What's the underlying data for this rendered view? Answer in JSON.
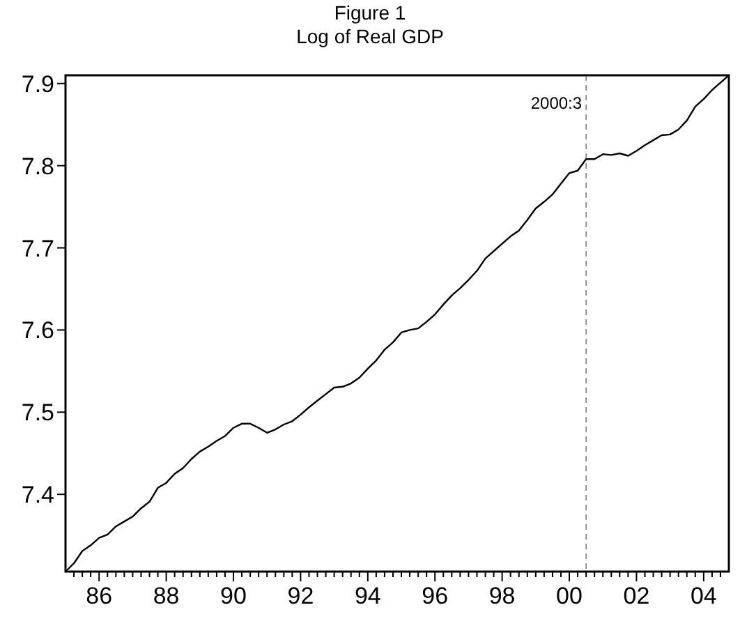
{
  "chart_data": {
    "type": "line",
    "title": "Figure 1",
    "subtitle": "Log of Real GDP",
    "x": [
      1985,
      1985.25,
      1985.5,
      1985.75,
      1986,
      1986.25,
      1986.5,
      1986.75,
      1987,
      1987.25,
      1987.5,
      1987.75,
      1988,
      1988.25,
      1988.5,
      1988.75,
      1989,
      1989.25,
      1989.5,
      1989.75,
      1990,
      1990.25,
      1990.5,
      1990.75,
      1991,
      1991.25,
      1991.5,
      1991.75,
      1992,
      1992.25,
      1992.5,
      1992.75,
      1993,
      1993.25,
      1993.5,
      1993.75,
      1994,
      1994.25,
      1994.5,
      1994.75,
      1995,
      1995.25,
      1995.5,
      1995.75,
      1996,
      1996.25,
      1996.5,
      1996.75,
      1997,
      1997.25,
      1997.5,
      1997.75,
      1998,
      1998.25,
      1998.5,
      1998.75,
      1999,
      1999.25,
      1999.5,
      1999.75,
      2000,
      2000.25,
      2000.5,
      2000.75,
      2001,
      2001.25,
      2001.5,
      2001.75,
      2002,
      2002.25,
      2002.5,
      2002.75,
      2003,
      2003.25,
      2003.5,
      2003.75,
      2004,
      2004.25,
      2004.5,
      2004.75
    ],
    "series": [
      {
        "color": "#000000",
        "values": [
          7.306,
          7.316,
          7.331,
          7.338,
          7.347,
          7.351,
          7.361,
          7.367,
          7.373,
          7.383,
          7.391,
          7.408,
          7.414,
          7.425,
          7.432,
          7.443,
          7.452,
          7.458,
          7.465,
          7.471,
          7.481,
          7.486,
          7.486,
          7.481,
          7.475,
          7.479,
          7.485,
          7.489,
          7.497,
          7.506,
          7.514,
          7.522,
          7.53,
          7.531,
          7.535,
          7.542,
          7.553,
          7.563,
          7.576,
          7.585,
          7.597,
          7.6,
          7.602,
          7.61,
          7.619,
          7.631,
          7.642,
          7.651,
          7.661,
          7.672,
          7.687,
          7.696,
          7.705,
          7.714,
          7.721,
          7.734,
          7.748,
          7.756,
          7.765,
          7.778,
          7.791,
          7.794,
          7.808,
          7.808,
          7.814,
          7.813,
          7.815,
          7.812,
          7.818,
          7.825,
          7.831,
          7.837,
          7.838,
          7.844,
          7.855,
          7.872,
          7.881,
          7.892,
          7.901,
          7.91
        ]
      }
    ],
    "xlim": [
      1985,
      2004.75
    ],
    "xticks": [
      {
        "value": 1985.25,
        "label": null
      },
      {
        "value": 1985.5,
        "label": null
      },
      {
        "value": 1985.75,
        "label": null
      },
      {
        "value": 1986,
        "label": "86"
      },
      {
        "value": 1986.25,
        "label": null
      },
      {
        "value": 1986.5,
        "label": null
      },
      {
        "value": 1986.75,
        "label": null
      },
      {
        "value": 1987,
        "label": null
      },
      {
        "value": 1987.25,
        "label": null
      },
      {
        "value": 1987.5,
        "label": null
      },
      {
        "value": 1987.75,
        "label": null
      },
      {
        "value": 1988,
        "label": "88"
      },
      {
        "value": 1988.25,
        "label": null
      },
      {
        "value": 1988.5,
        "label": null
      },
      {
        "value": 1988.75,
        "label": null
      },
      {
        "value": 1989,
        "label": null
      },
      {
        "value": 1989.25,
        "label": null
      },
      {
        "value": 1989.5,
        "label": null
      },
      {
        "value": 1989.75,
        "label": null
      },
      {
        "value": 1990,
        "label": "90"
      },
      {
        "value": 1990.25,
        "label": null
      },
      {
        "value": 1990.5,
        "label": null
      },
      {
        "value": 1990.75,
        "label": null
      },
      {
        "value": 1991,
        "label": null
      },
      {
        "value": 1991.25,
        "label": null
      },
      {
        "value": 1991.5,
        "label": null
      },
      {
        "value": 1991.75,
        "label": null
      },
      {
        "value": 1992,
        "label": "92"
      },
      {
        "value": 1992.25,
        "label": null
      },
      {
        "value": 1992.5,
        "label": null
      },
      {
        "value": 1992.75,
        "label": null
      },
      {
        "value": 1993,
        "label": null
      },
      {
        "value": 1993.25,
        "label": null
      },
      {
        "value": 1993.5,
        "label": null
      },
      {
        "value": 1993.75,
        "label": null
      },
      {
        "value": 1994,
        "label": "94"
      },
      {
        "value": 1994.25,
        "label": null
      },
      {
        "value": 1994.5,
        "label": null
      },
      {
        "value": 1994.75,
        "label": null
      },
      {
        "value": 1995,
        "label": null
      },
      {
        "value": 1995.25,
        "label": null
      },
      {
        "value": 1995.5,
        "label": null
      },
      {
        "value": 1995.75,
        "label": null
      },
      {
        "value": 1996,
        "label": "96"
      },
      {
        "value": 1996.25,
        "label": null
      },
      {
        "value": 1996.5,
        "label": null
      },
      {
        "value": 1996.75,
        "label": null
      },
      {
        "value": 1997,
        "label": null
      },
      {
        "value": 1997.25,
        "label": null
      },
      {
        "value": 1997.5,
        "label": null
      },
      {
        "value": 1997.75,
        "label": null
      },
      {
        "value": 1998,
        "label": "98"
      },
      {
        "value": 1998.25,
        "label": null
      },
      {
        "value": 1998.5,
        "label": null
      },
      {
        "value": 1998.75,
        "label": null
      },
      {
        "value": 1999,
        "label": null
      },
      {
        "value": 1999.25,
        "label": null
      },
      {
        "value": 1999.5,
        "label": null
      },
      {
        "value": 1999.75,
        "label": null
      },
      {
        "value": 2000,
        "label": "00"
      },
      {
        "value": 2000.25,
        "label": null
      },
      {
        "value": 2000.5,
        "label": null
      },
      {
        "value": 2000.75,
        "label": null
      },
      {
        "value": 2001,
        "label": null
      },
      {
        "value": 2001.25,
        "label": null
      },
      {
        "value": 2001.5,
        "label": null
      },
      {
        "value": 2001.75,
        "label": null
      },
      {
        "value": 2002,
        "label": "02"
      },
      {
        "value": 2002.25,
        "label": null
      },
      {
        "value": 2002.5,
        "label": null
      },
      {
        "value": 2002.75,
        "label": null
      },
      {
        "value": 2003,
        "label": null
      },
      {
        "value": 2003.25,
        "label": null
      },
      {
        "value": 2003.5,
        "label": null
      },
      {
        "value": 2003.75,
        "label": null
      },
      {
        "value": 2004,
        "label": "04"
      },
      {
        "value": 2004.25,
        "label": null
      },
      {
        "value": 2004.5,
        "label": null
      }
    ],
    "ylim": [
      7.306,
      7.91
    ],
    "yticks": [
      7.4,
      7.5,
      7.6,
      7.7,
      7.8,
      7.9
    ],
    "ref_lines": [
      {
        "axis": "x",
        "value": 2000.5,
        "label": "2000:3",
        "color": "#808080",
        "line_style": "dashed"
      }
    ],
    "line_style": "solid",
    "marker": "none",
    "grid": false
  }
}
